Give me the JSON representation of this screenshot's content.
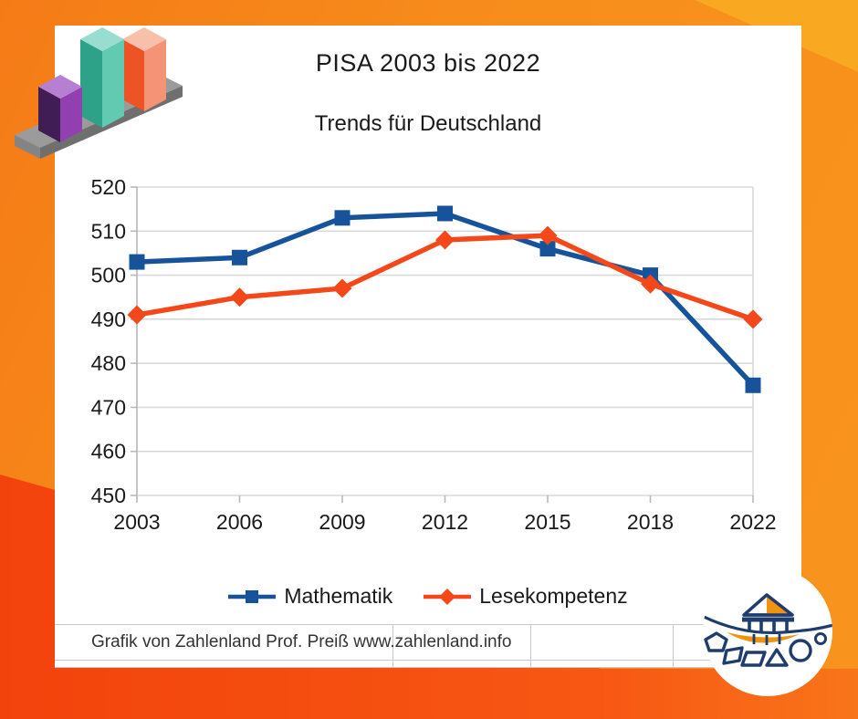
{
  "title": "PISA 2003 bis 2022",
  "subtitle": "Trends für Deutschland",
  "footer": {
    "credit": "Grafik von Zahlenland Prof. Preiß www.zahlenland.info"
  },
  "colors": {
    "math_line": "#17539b",
    "reading_line": "#f4481a",
    "frame_orange": "#f7941d",
    "frame_red": "#f24a0e",
    "frame_yellow": "#f9a822",
    "grid_gray": "#d9d9d9",
    "axis_gray": "#b8b8b8",
    "logo_navy": "#1e3c6e",
    "logo_orange": "#f0930f"
  },
  "icons": {
    "top_left": "3d-bar-chart-logo",
    "bottom_right": "zahlenland-pavilion-boat-logo"
  },
  "chart_data": {
    "type": "line",
    "title": "PISA 2003 bis 2022",
    "subtitle": "Trends für Deutschland",
    "categories": [
      "2003",
      "2006",
      "2009",
      "2012",
      "2015",
      "2018",
      "2022"
    ],
    "series": [
      {
        "name": "Mathematik",
        "marker": "square",
        "color": "#17539b",
        "values": [
          503,
          504,
          513,
          514,
          506,
          500,
          475
        ]
      },
      {
        "name": "Lesekompetenz",
        "marker": "diamond",
        "color": "#f4481a",
        "values": [
          491,
          495,
          497,
          508,
          509,
          498,
          490
        ]
      }
    ],
    "ylim": [
      450,
      520
    ],
    "ytick_step": 10,
    "grid": "horizontal",
    "legend_position": "bottom",
    "xlabel": "",
    "ylabel": ""
  }
}
